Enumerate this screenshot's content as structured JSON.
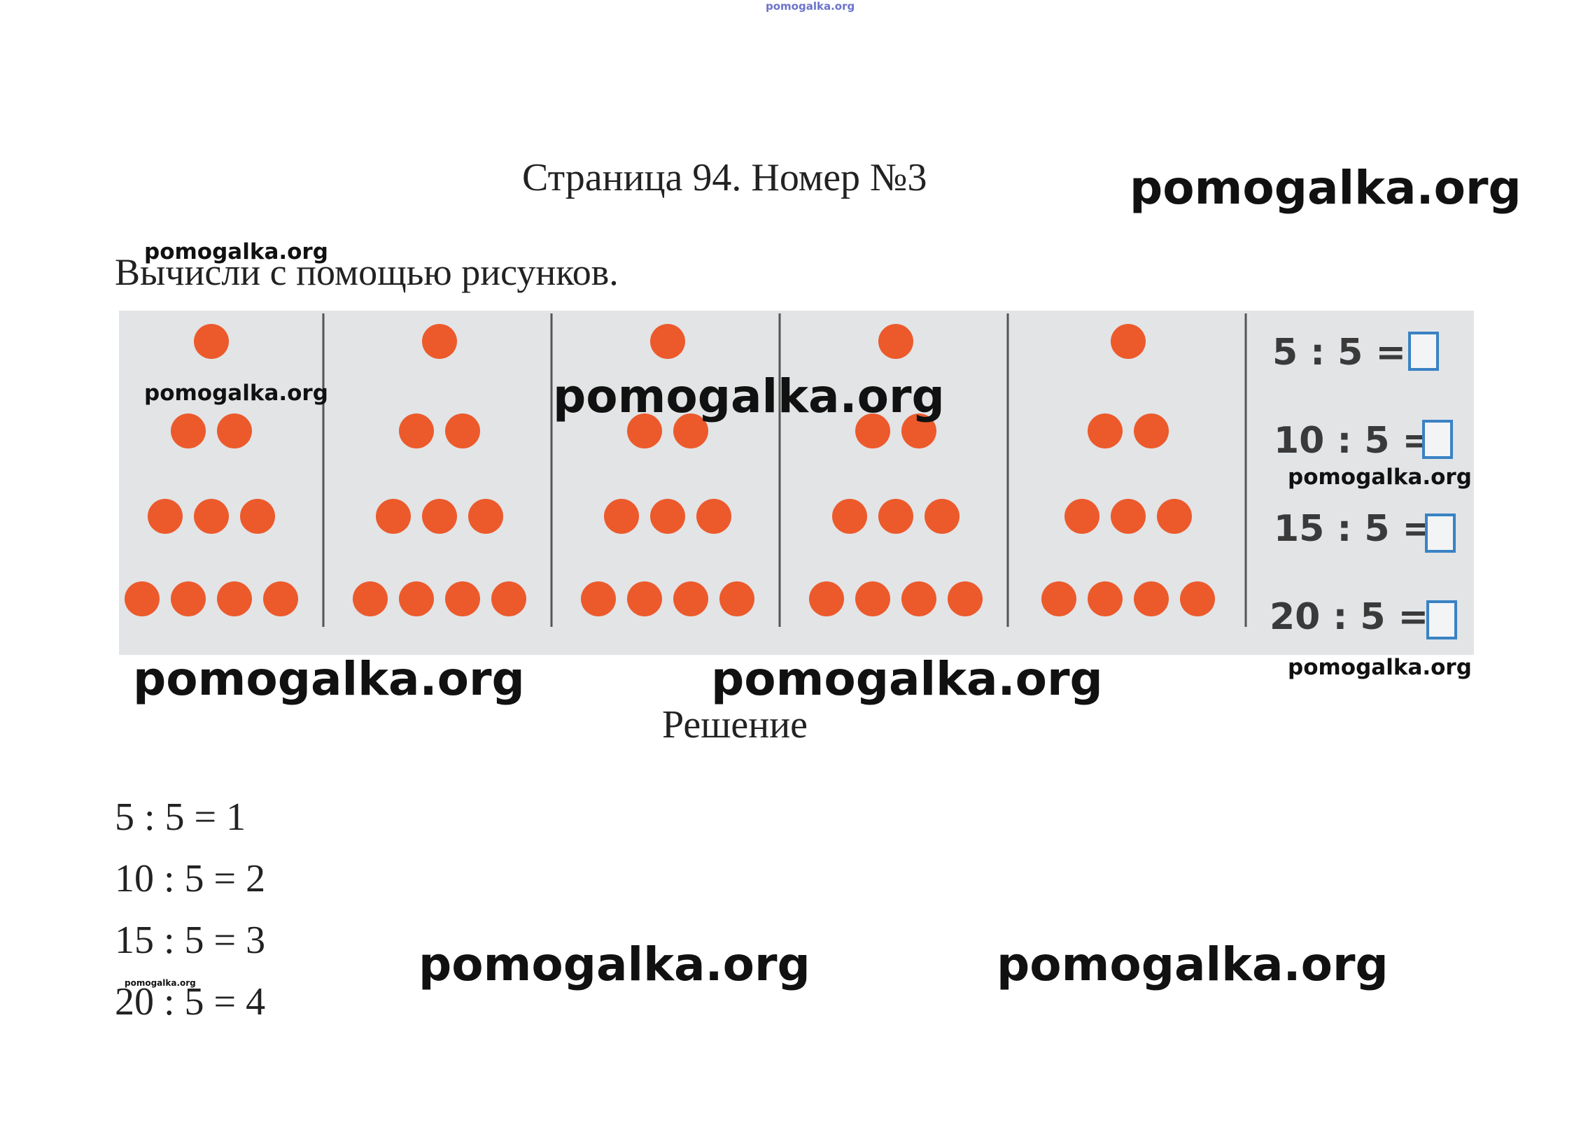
{
  "header": {
    "watermark_tiny": "pomogalka.org",
    "page_title": "Страница 94. Номер №3",
    "brand_watermark": "pomogalka.org"
  },
  "task": {
    "text": "Вычисли с помощью рисунков.",
    "watermark": "pomogalka.org"
  },
  "picture": {
    "dot_color": "#ec5a2c",
    "divider_color": "#555555",
    "background_color": "#e2e4e6",
    "groups": [
      {
        "rows": [
          1,
          2,
          3,
          4
        ]
      },
      {
        "rows": [
          1,
          2,
          3,
          4
        ]
      },
      {
        "rows": [
          1,
          2,
          3,
          4
        ]
      },
      {
        "rows": [
          1,
          2,
          3,
          4
        ]
      },
      {
        "rows": [
          1,
          2,
          3,
          4
        ]
      }
    ],
    "equations": [
      {
        "text": "5 : 5 ="
      },
      {
        "text": "10 : 5 ="
      },
      {
        "text": "15 : 5 ="
      },
      {
        "text": "20 : 5 ="
      }
    ],
    "answer_box_color": "#3a82c4",
    "watermarks": [
      "pomogalka.org",
      "pomogalka.org",
      "pomogalka.org",
      "pomogalka.org"
    ]
  },
  "below_picture_watermarks": [
    "pomogalka.org",
    "pomogalka.org"
  ],
  "solution": {
    "title": "Решение",
    "answers": [
      "5 : 5 = 1",
      "10 : 5 = 2",
      "15 : 5 = 3",
      "20 : 5 = 4"
    ],
    "watermark_small": "pomogalka.org",
    "watermarks": [
      "pomogalka.org",
      "pomogalka.org"
    ]
  }
}
